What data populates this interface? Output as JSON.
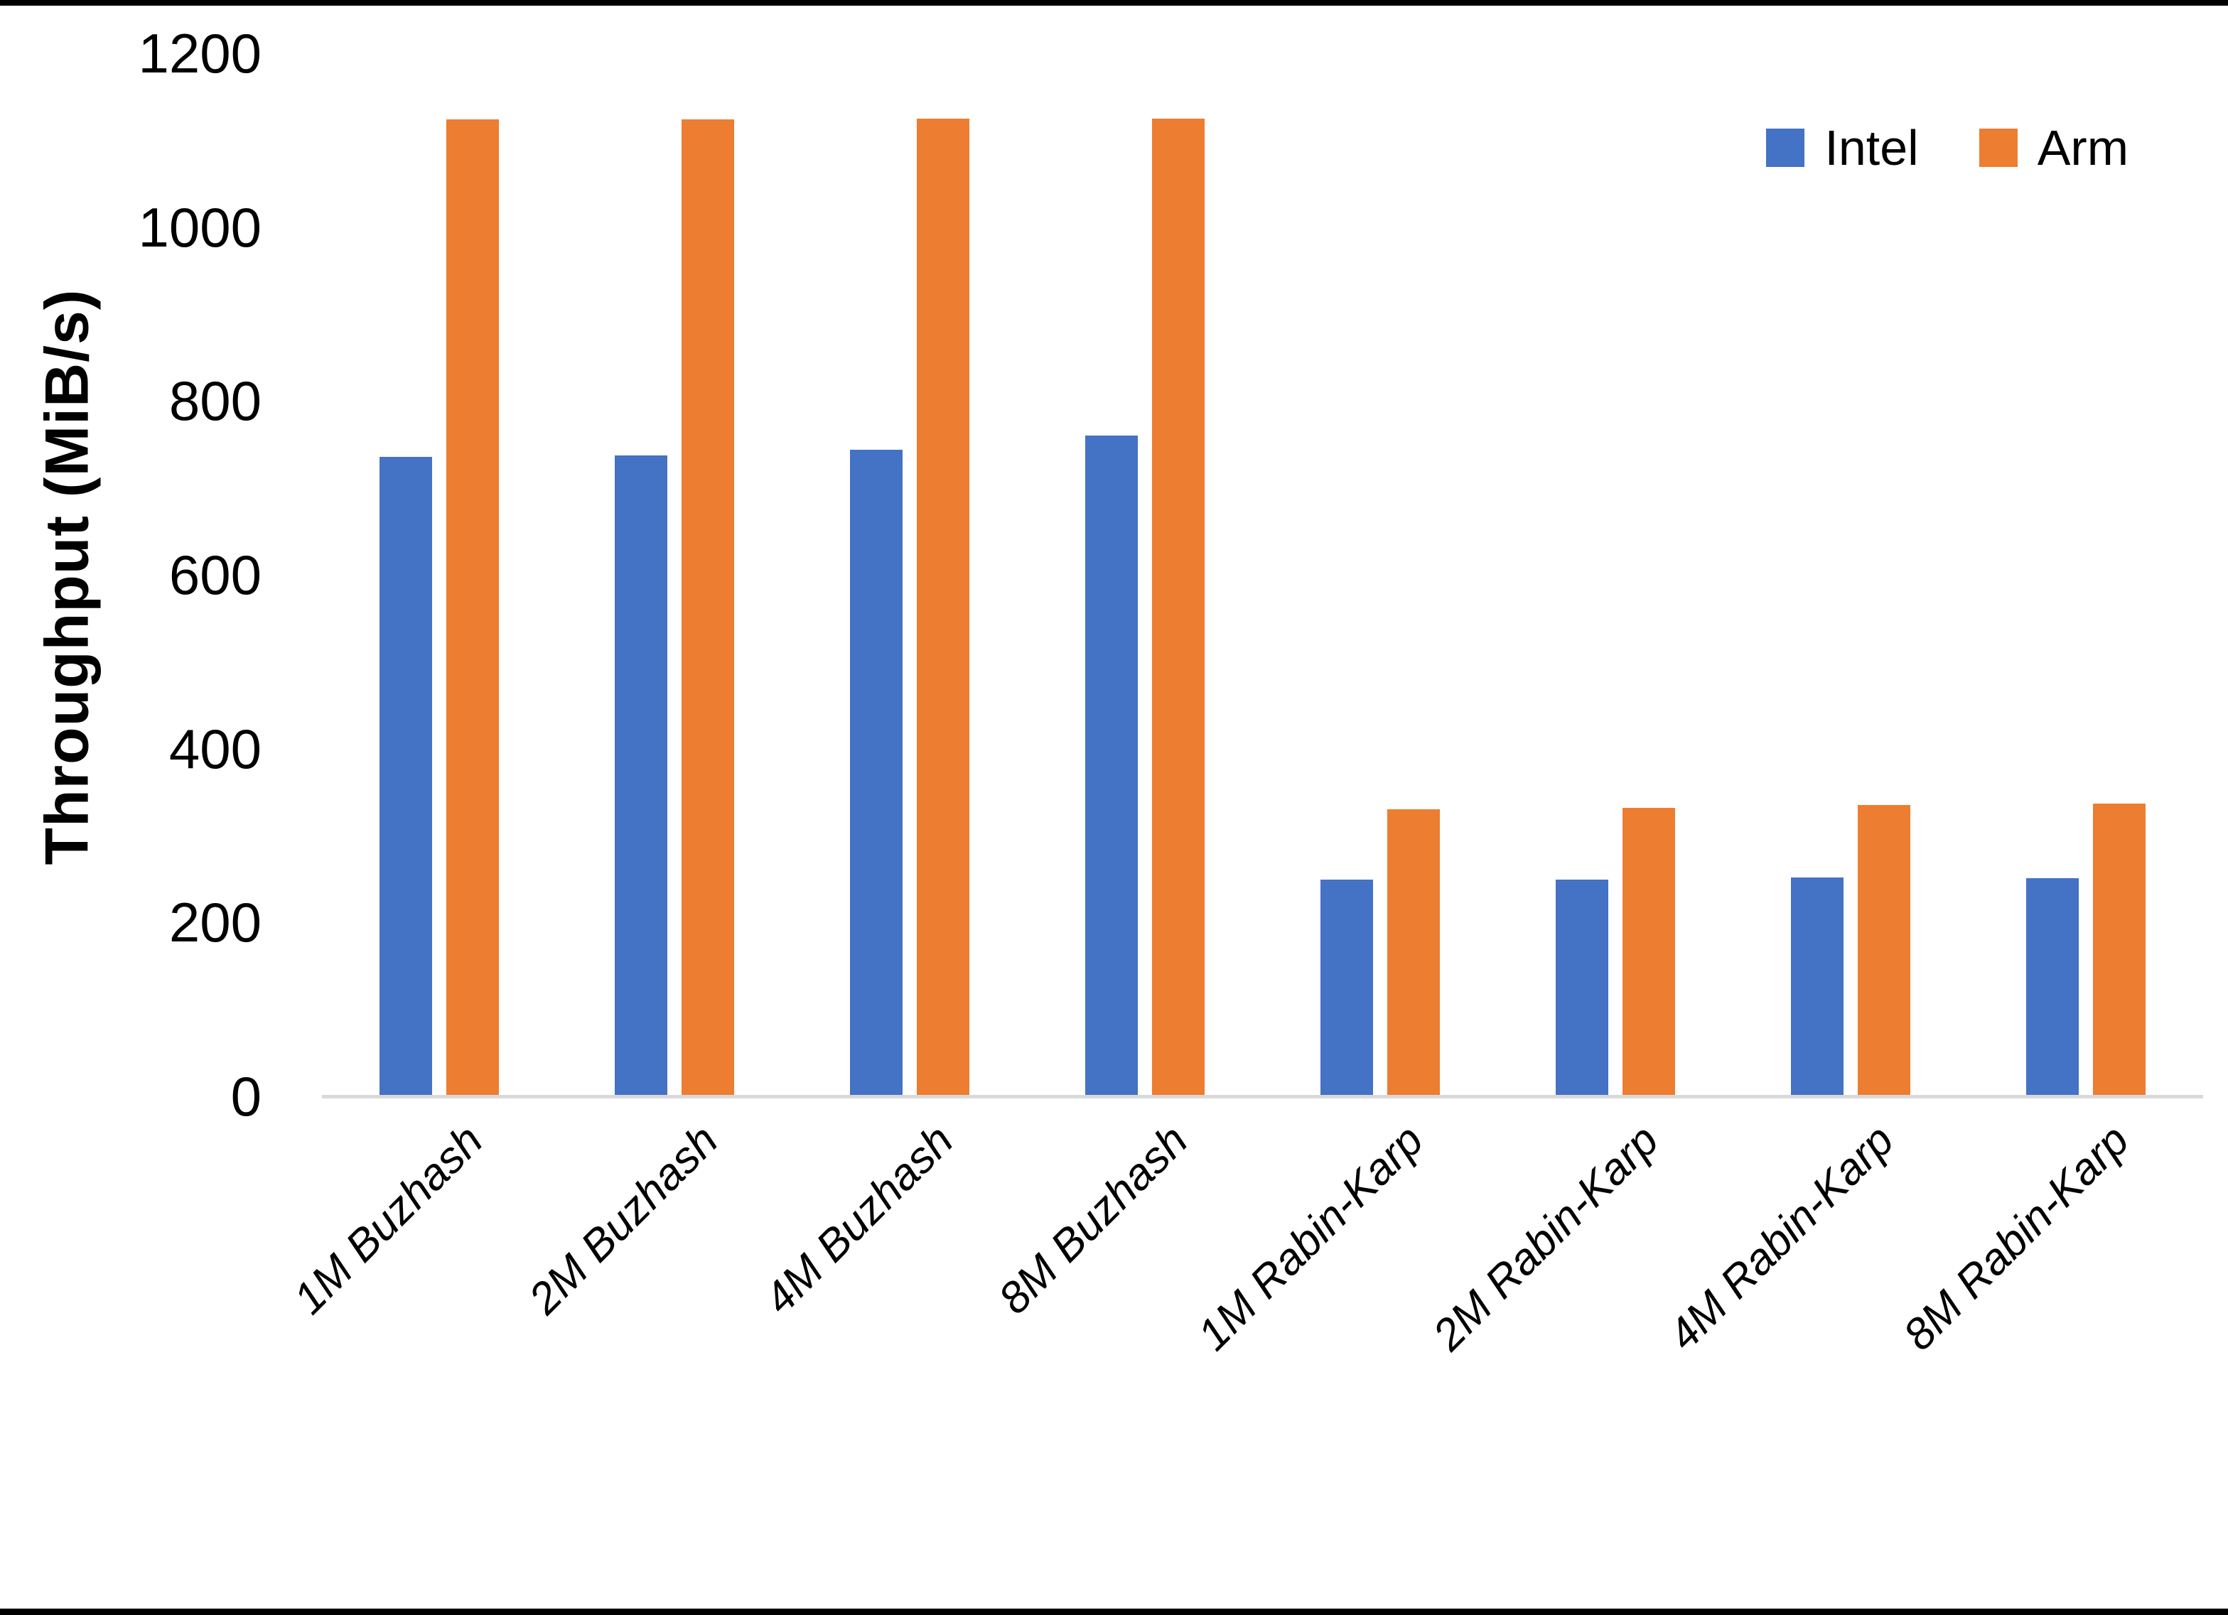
{
  "frame": {
    "border_color": "#000000",
    "background": "#ffffff"
  },
  "chart_data": {
    "type": "bar",
    "title": "",
    "xlabel": "",
    "ylabel": "Throughput (MiB/s)",
    "ylim": [
      0,
      1200
    ],
    "yticks": [
      0,
      200,
      400,
      600,
      800,
      1000,
      1200
    ],
    "grid": false,
    "legend_position": "top-right",
    "axis_line_color": "#D9D9D9",
    "categories": [
      "1M Buzhash",
      "2M Buzhash",
      "4M Buzhash",
      "8M Buzhash",
      "1M Rabin-Karp",
      "2M Rabin-Karp",
      "4M Rabin-Karp",
      "8M Rabin-Karp"
    ],
    "series": [
      {
        "name": "Intel",
        "color": "#4472C4",
        "values": [
          736,
          737,
          744,
          760,
          249,
          249,
          252,
          251
        ]
      },
      {
        "name": "Arm",
        "color": "#ED7D31",
        "values": [
          1124,
          1124,
          1125,
          1125,
          330,
          332,
          335,
          337
        ]
      }
    ]
  }
}
